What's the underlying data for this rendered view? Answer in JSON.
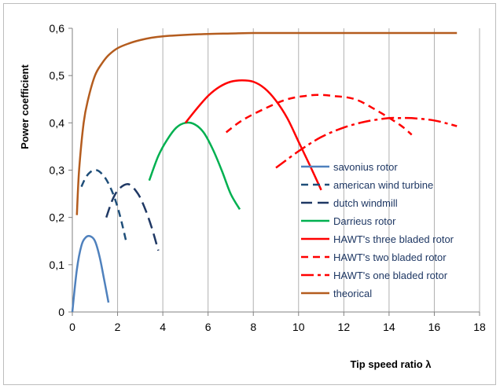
{
  "chart_data": {
    "type": "line",
    "title": "",
    "xlabel": "Tip speed ratio λ",
    "ylabel": "Power coefficient",
    "xlim": [
      0,
      18
    ],
    "ylim": [
      0,
      0.6
    ],
    "xticks": [
      0,
      2,
      4,
      6,
      8,
      10,
      12,
      14,
      16,
      18
    ],
    "yticks": [
      0,
      0.1,
      0.2,
      0.3,
      0.4,
      0.5,
      0.6
    ],
    "x_tick_labels": [
      "0",
      "2",
      "4",
      "6",
      "8",
      "10",
      "12",
      "14",
      "16",
      "18"
    ],
    "y_tick_labels": [
      "0",
      "0,1",
      "0,2",
      "0,3",
      "0,4",
      "0,5",
      "0,6"
    ],
    "grid": "vertical",
    "legend_position": "right",
    "series": [
      {
        "name": "savonius rotor",
        "color": "#4f81bd",
        "dash": "solid",
        "x": [
          0,
          0.2,
          0.4,
          0.6,
          0.8,
          1.0,
          1.2,
          1.4,
          1.6
        ],
        "y": [
          0,
          0.09,
          0.14,
          0.158,
          0.16,
          0.15,
          0.118,
          0.07,
          0.02
        ]
      },
      {
        "name": "american wind turbine",
        "color": "#1f4e79",
        "dash": "dashed",
        "x": [
          0.4,
          0.6,
          0.8,
          1.0,
          1.2,
          1.5,
          1.8,
          2.1,
          2.4
        ],
        "y": [
          0.265,
          0.285,
          0.296,
          0.3,
          0.297,
          0.28,
          0.25,
          0.205,
          0.145
        ]
      },
      {
        "name": "dutch windmill",
        "color": "#1f3864",
        "dash": "longdash",
        "x": [
          1.5,
          1.8,
          2.1,
          2.5,
          2.9,
          3.2,
          3.5,
          3.8
        ],
        "y": [
          0.2,
          0.24,
          0.262,
          0.27,
          0.25,
          0.22,
          0.18,
          0.13
        ]
      },
      {
        "name": "Darrieus rotor",
        "color": "#00b050",
        "dash": "solid",
        "x": [
          3.4,
          3.8,
          4.2,
          4.6,
          5.0,
          5.4,
          5.8,
          6.2,
          6.6,
          7.0,
          7.4
        ],
        "y": [
          0.278,
          0.33,
          0.365,
          0.39,
          0.4,
          0.397,
          0.38,
          0.345,
          0.3,
          0.25,
          0.217
        ]
      },
      {
        "name": "HAWT's three bladed rotor",
        "color": "#ff0000",
        "dash": "solid",
        "x": [
          5.0,
          5.5,
          6.0,
          6.5,
          7.0,
          7.5,
          8.0,
          8.5,
          9.0,
          9.5,
          10.0,
          10.5,
          11.0
        ],
        "y": [
          0.4,
          0.43,
          0.457,
          0.476,
          0.487,
          0.49,
          0.487,
          0.473,
          0.447,
          0.41,
          0.36,
          0.31,
          0.258
        ]
      },
      {
        "name": "HAWT's two bladed rotor",
        "color": "#ff0000",
        "dash": "dashed",
        "x": [
          6.8,
          7.5,
          8.5,
          9.5,
          10.5,
          11.0,
          11.5,
          12.5,
          13.5,
          14.5,
          15.0
        ],
        "y": [
          0.38,
          0.405,
          0.43,
          0.45,
          0.458,
          0.459,
          0.457,
          0.45,
          0.425,
          0.395,
          0.375
        ]
      },
      {
        "name": "HAWT's one bladed rotor",
        "color": "#ff0000",
        "dash": "dashdot",
        "x": [
          9.0,
          10.0,
          11.0,
          12.0,
          13.0,
          14.0,
          14.5,
          15.0,
          16.0,
          17.0
        ],
        "y": [
          0.305,
          0.34,
          0.37,
          0.39,
          0.403,
          0.41,
          0.41,
          0.41,
          0.405,
          0.393
        ]
      },
      {
        "name": "theorical",
        "color": "#b45c1e",
        "dash": "solid",
        "x": [
          0.2,
          0.3,
          0.5,
          0.7,
          1.0,
          1.3,
          1.6,
          2.0,
          2.5,
          3.0,
          3.5,
          4.0,
          5.0,
          6.0,
          7.0,
          8.0,
          9.0,
          10.0,
          12.0,
          14.0,
          16.0,
          17.0
        ],
        "y": [
          0.205,
          0.3,
          0.4,
          0.45,
          0.5,
          0.525,
          0.543,
          0.558,
          0.568,
          0.575,
          0.58,
          0.583,
          0.586,
          0.588,
          0.589,
          0.59,
          0.59,
          0.59,
          0.59,
          0.59,
          0.59,
          0.59
        ]
      }
    ]
  }
}
